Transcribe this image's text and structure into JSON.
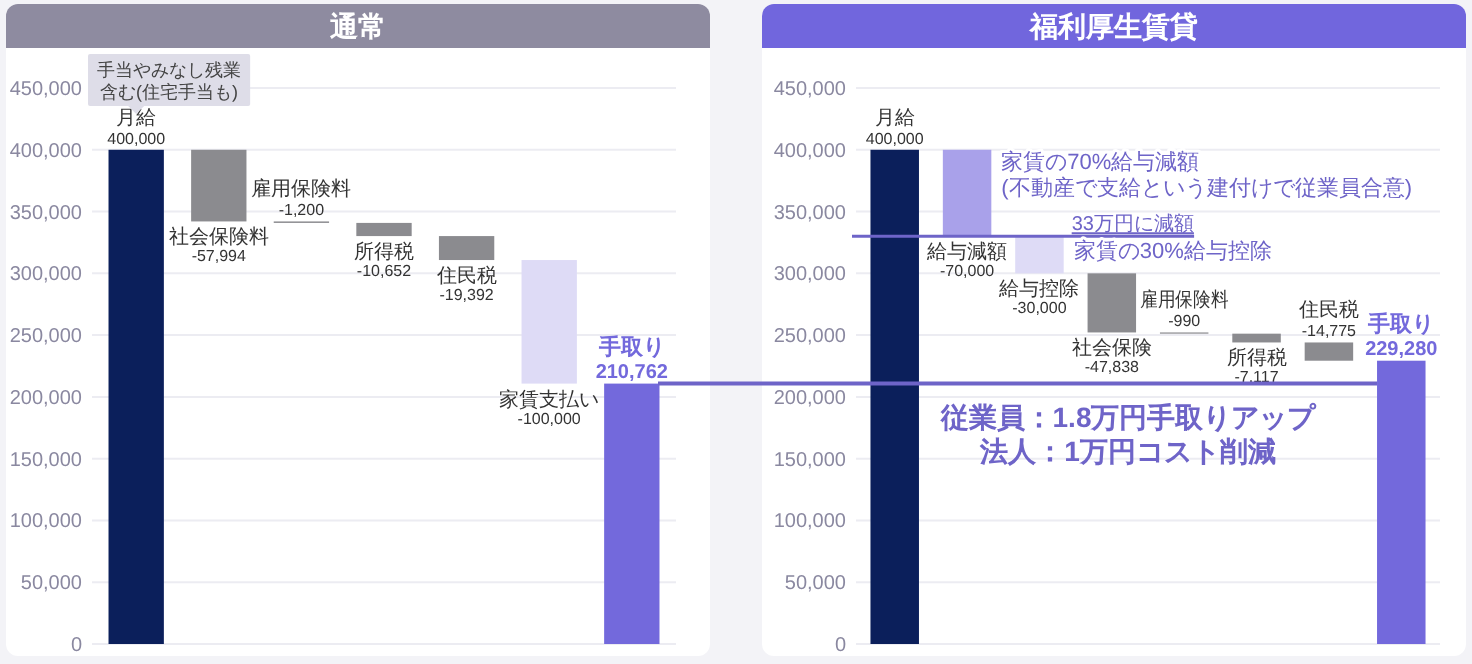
{
  "chart_data": [
    {
      "type": "bar",
      "title": "通常",
      "categories": [
        "月給",
        "社会保険料",
        "雇用保険料",
        "所得税",
        "住民税",
        "家賃支払い",
        "手取り"
      ],
      "values": [
        400000,
        -57994,
        -1200,
        -10652,
        -19392,
        -100000,
        210762
      ],
      "base": [
        0,
        400000,
        342006,
        340806,
        330154,
        310762,
        0
      ],
      "colors": [
        "#0b1f5b",
        "#8b8b8f",
        "#8b8b8f",
        "#8b8b8f",
        "#8b8b8f",
        "#dedbf6",
        "#7369dc"
      ],
      "value_labels": [
        "400,000",
        "-57,994",
        "-1,200",
        "-10,652",
        "-19,392",
        "-100,000",
        "210,762"
      ],
      "ylim": [
        0,
        450000
      ],
      "yticks": [
        {
          "value": 0,
          "label": "0"
        },
        {
          "value": 50000,
          "label": "50,000"
        },
        {
          "value": 100000,
          "label": "100,000"
        },
        {
          "value": 150000,
          "label": "150,000"
        },
        {
          "value": 200000,
          "label": "200,000"
        },
        {
          "value": 250000,
          "label": "250,000"
        },
        {
          "value": 300000,
          "label": "300,000"
        },
        {
          "value": 350000,
          "label": "350,000"
        },
        {
          "value": 400000,
          "label": "400,000"
        },
        {
          "value": 450000,
          "label": "450,000"
        }
      ],
      "grid": "y",
      "annotations": [
        "手当やみなし残業含む(住宅手当も)"
      ]
    },
    {
      "type": "bar",
      "title": "福利厚生賃貸",
      "categories": [
        "月給",
        "給与減額",
        "給与控除",
        "社会保険",
        "雇用保険料",
        "所得税",
        "住民税",
        "手取り"
      ],
      "values": [
        400000,
        -70000,
        -30000,
        -47838,
        -990,
        -7117,
        -14775,
        229280
      ],
      "base": [
        0,
        400000,
        330000,
        300000,
        252162,
        251172,
        244055,
        0
      ],
      "colors": [
        "#0b1f5b",
        "#a9a1ea",
        "#dedbf6",
        "#8b8b8f",
        "#8b8b8f",
        "#8b8b8f",
        "#8b8b8f",
        "#7369dc"
      ],
      "value_labels": [
        "400,000",
        "-70,000",
        "-30,000",
        "-47,838",
        "-990",
        "-7,117",
        "-14,775",
        "229,280"
      ],
      "ylim": [
        0,
        450000
      ],
      "yticks": [
        {
          "value": 0,
          "label": "0"
        },
        {
          "value": 50000,
          "label": "50,000"
        },
        {
          "value": 100000,
          "label": "100,000"
        },
        {
          "value": 150000,
          "label": "150,000"
        },
        {
          "value": 200000,
          "label": "200,000"
        },
        {
          "value": 250000,
          "label": "250,000"
        },
        {
          "value": 300000,
          "label": "300,000"
        },
        {
          "value": 350000,
          "label": "350,000"
        },
        {
          "value": 400000,
          "label": "400,000"
        },
        {
          "value": 450000,
          "label": "450,000"
        }
      ],
      "grid": "y",
      "ref_lines": [
        {
          "axis": "y",
          "value": 330000,
          "label": "33万円に減額",
          "color": "#6e64c8"
        },
        {
          "axis": "y",
          "value": 210762,
          "color": "#6e64c8"
        }
      ],
      "annotations": [
        "家賃の70%給与減額(不動産で支給という建付けで従業員合意)",
        "家賃の30%給与控除",
        "従業員：1.8万円手取りアップ",
        "法人：1万円コスト削減"
      ]
    }
  ]
}
